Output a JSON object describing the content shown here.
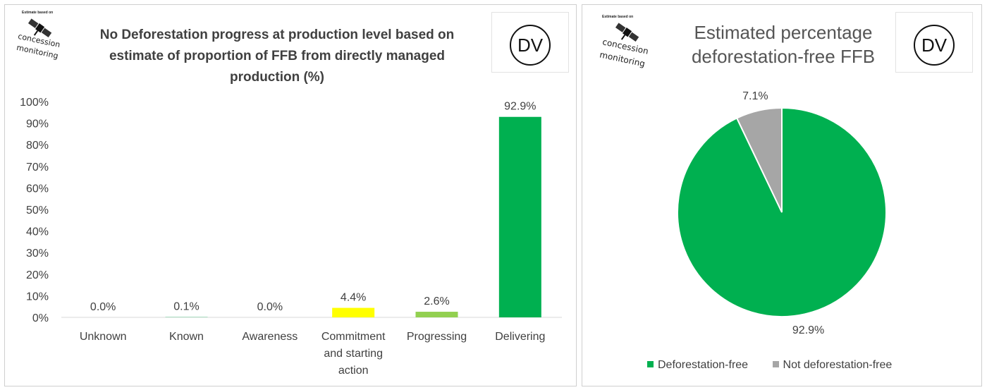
{
  "left_panel": {
    "logo": {
      "top_text": "Estimate based on",
      "word1": "concession",
      "word2": "monitoring",
      "icon": "satellite-icon"
    },
    "badge": "DV",
    "chart_data": {
      "type": "bar",
      "title": "No Deforestation progress at production level based on estimate of proportion of FFB from directly managed production (%)",
      "categories": [
        "Unknown",
        "Known",
        "Awareness",
        "Commitment and starting action",
        "Progressing",
        "Delivering"
      ],
      "category_lines": [
        [
          "Unknown"
        ],
        [
          "Known"
        ],
        [
          "Awareness"
        ],
        [
          "Commitment",
          "and starting",
          "action"
        ],
        [
          "Progressing"
        ],
        [
          "Delivering"
        ]
      ],
      "values": [
        0.0,
        0.1,
        0.0,
        4.4,
        2.6,
        92.9
      ],
      "data_labels": [
        "0.0%",
        "0.1%",
        "0.0%",
        "4.4%",
        "2.6%",
        "92.9%"
      ],
      "colors": [
        "#00b050",
        "#00b050",
        "#00b050",
        "#ffff00",
        "#92d050",
        "#00b050"
      ],
      "ylim": [
        0,
        100
      ],
      "yticks": [
        "0%",
        "10%",
        "20%",
        "30%",
        "40%",
        "50%",
        "60%",
        "70%",
        "80%",
        "90%",
        "100%"
      ],
      "grid": false
    }
  },
  "right_panel": {
    "logo": {
      "top_text": "Estimate based on",
      "word1": "concession",
      "word2": "monitoring",
      "icon": "satellite-icon"
    },
    "badge": "DV",
    "chart_data": {
      "type": "pie",
      "title": "Estimated percentage deforestation-free FFB",
      "title_lines": [
        "Estimated percentage",
        "deforestation-free FFB"
      ],
      "labels": [
        "Deforestation-free",
        "Not deforestation-free"
      ],
      "values": [
        92.9,
        7.1
      ],
      "data_labels": [
        "92.9%",
        "7.1%"
      ],
      "colors": [
        "#00b050",
        "#a6a6a6"
      ],
      "legend_position": "bottom"
    }
  }
}
